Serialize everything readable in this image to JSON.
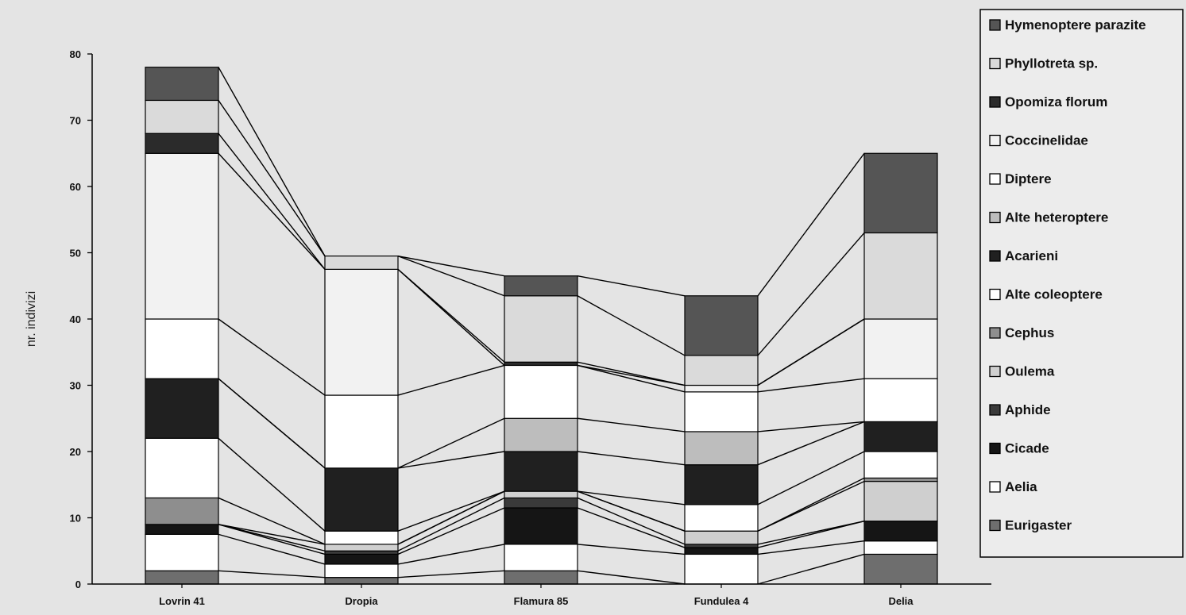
{
  "chart_data": {
    "type": "bar",
    "subtype": "stacked-bar-with-series-lines",
    "title": "",
    "xlabel": "",
    "ylabel": "nr. indivizi",
    "ylim": [
      0,
      80
    ],
    "yticks": [
      0,
      10,
      20,
      30,
      40,
      50,
      60,
      70,
      80
    ],
    "grid": false,
    "legend_position": "right",
    "categories": [
      "Lovrin 41",
      "Dropia",
      "Flamura 85",
      "Fundulea 4",
      "Delia"
    ],
    "series": [
      {
        "name": "Eurigaster",
        "values": [
          2,
          1,
          2,
          0,
          4.5
        ],
        "color": "#6e6e6e"
      },
      {
        "name": "Aelia",
        "values": [
          5.5,
          2,
          4,
          4.5,
          2
        ],
        "color": "#ffffff"
      },
      {
        "name": "Cicade",
        "values": [
          1.5,
          1.5,
          5.5,
          1,
          3
        ],
        "color": "#151515"
      },
      {
        "name": "Aphide",
        "values": [
          0,
          0.5,
          1.5,
          0.5,
          0
        ],
        "color": "#3a3a3a"
      },
      {
        "name": "Oulema",
        "values": [
          0,
          1,
          1,
          2,
          6
        ],
        "color": "#cfcfcf"
      },
      {
        "name": "Cephus",
        "values": [
          4,
          0,
          0,
          0,
          0.5
        ],
        "color": "#8e8e8e"
      },
      {
        "name": "Alte coleoptere",
        "values": [
          9,
          2,
          0,
          4,
          4
        ],
        "color": "#ffffff"
      },
      {
        "name": "Acarieni",
        "values": [
          9,
          9.5,
          6,
          6,
          4.5
        ],
        "color": "#202020"
      },
      {
        "name": "Alte heteroptere",
        "values": [
          0,
          0,
          5,
          5,
          0
        ],
        "color": "#bdbdbd"
      },
      {
        "name": "Diptere",
        "values": [
          9,
          11,
          8,
          6,
          6.5
        ],
        "color": "#ffffff"
      },
      {
        "name": "Coccinelidae",
        "values": [
          25,
          19,
          0,
          1,
          9
        ],
        "color": "#f2f2f2"
      },
      {
        "name": "Opomiza florum",
        "values": [
          3,
          0,
          0.5,
          0,
          0
        ],
        "color": "#2b2b2b"
      },
      {
        "name": "Phyllotreta sp.",
        "values": [
          5,
          2,
          10,
          4.5,
          13
        ],
        "color": "#dadada"
      },
      {
        "name": "Hymenoptere parazite",
        "values": [
          5,
          0,
          3,
          9,
          12
        ],
        "color": "#555555"
      }
    ]
  }
}
